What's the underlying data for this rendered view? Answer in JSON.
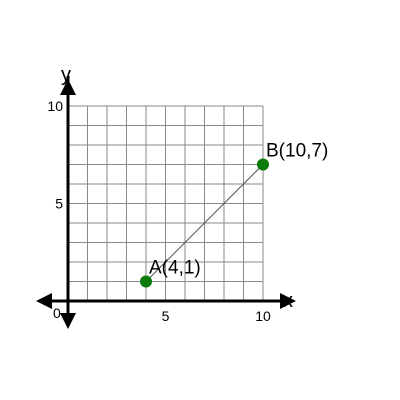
{
  "graph": {
    "x_axis_label": "x",
    "y_axis_label": "y",
    "x_range": [
      0,
      10
    ],
    "y_range": [
      0,
      10
    ],
    "grid": true,
    "origin_label": "0",
    "x_tick_labels": [
      {
        "value": 5,
        "label": "5"
      },
      {
        "value": 10,
        "label": "10"
      }
    ],
    "y_tick_labels": [
      {
        "value": 5,
        "label": "5"
      },
      {
        "value": 10,
        "label": "10"
      }
    ],
    "points": [
      {
        "label": "A(4,1)",
        "x": 4,
        "y": 1
      },
      {
        "label": "B(10,7)",
        "x": 10,
        "y": 7
      }
    ],
    "segment": {
      "from": "A(4,1)",
      "to": "B(10,7)"
    },
    "colors": {
      "point": "#0a7a0a",
      "segment": "#555555",
      "grid": "#8a8a8a",
      "axis": "#000000"
    }
  }
}
